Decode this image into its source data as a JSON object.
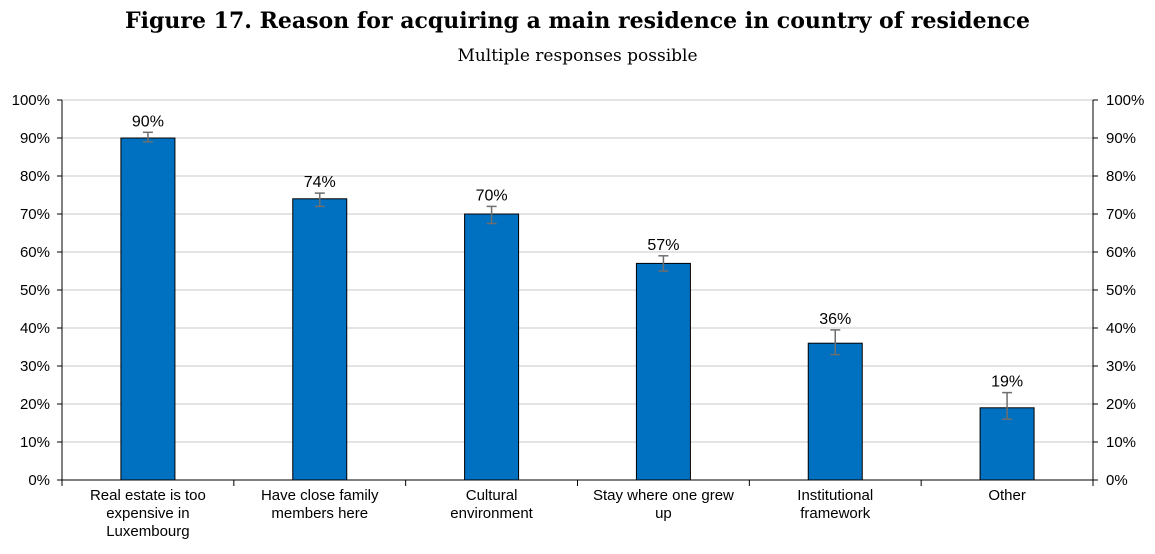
{
  "chart_data": {
    "type": "bar",
    "title": "Figure 17. Reason for acquiring a main residence in country of residence",
    "subtitle": "Multiple responses possible",
    "categories": [
      [
        "Real estate is too",
        "expensive in",
        "Luxembourg"
      ],
      [
        "Have close family",
        "members here"
      ],
      [
        "Cultural",
        "environment"
      ],
      [
        "Stay where one grew",
        "up"
      ],
      [
        "Institutional",
        "framework"
      ],
      [
        "Other"
      ]
    ],
    "values": [
      90,
      74,
      70,
      57,
      36,
      19
    ],
    "data_labels": [
      "90%",
      "74%",
      "70%",
      "57%",
      "36%",
      "19%"
    ],
    "error_bars": [
      [
        89,
        91.5
      ],
      [
        72,
        75.5
      ],
      [
        67.5,
        72
      ],
      [
        55,
        59
      ],
      [
        33,
        39.5
      ],
      [
        16,
        23
      ]
    ],
    "ylim": [
      0,
      100
    ],
    "yticks": [
      "0%",
      "10%",
      "20%",
      "30%",
      "40%",
      "50%",
      "60%",
      "70%",
      "80%",
      "90%",
      "100%"
    ],
    "bar_color": "#0070C0",
    "grid": true
  }
}
